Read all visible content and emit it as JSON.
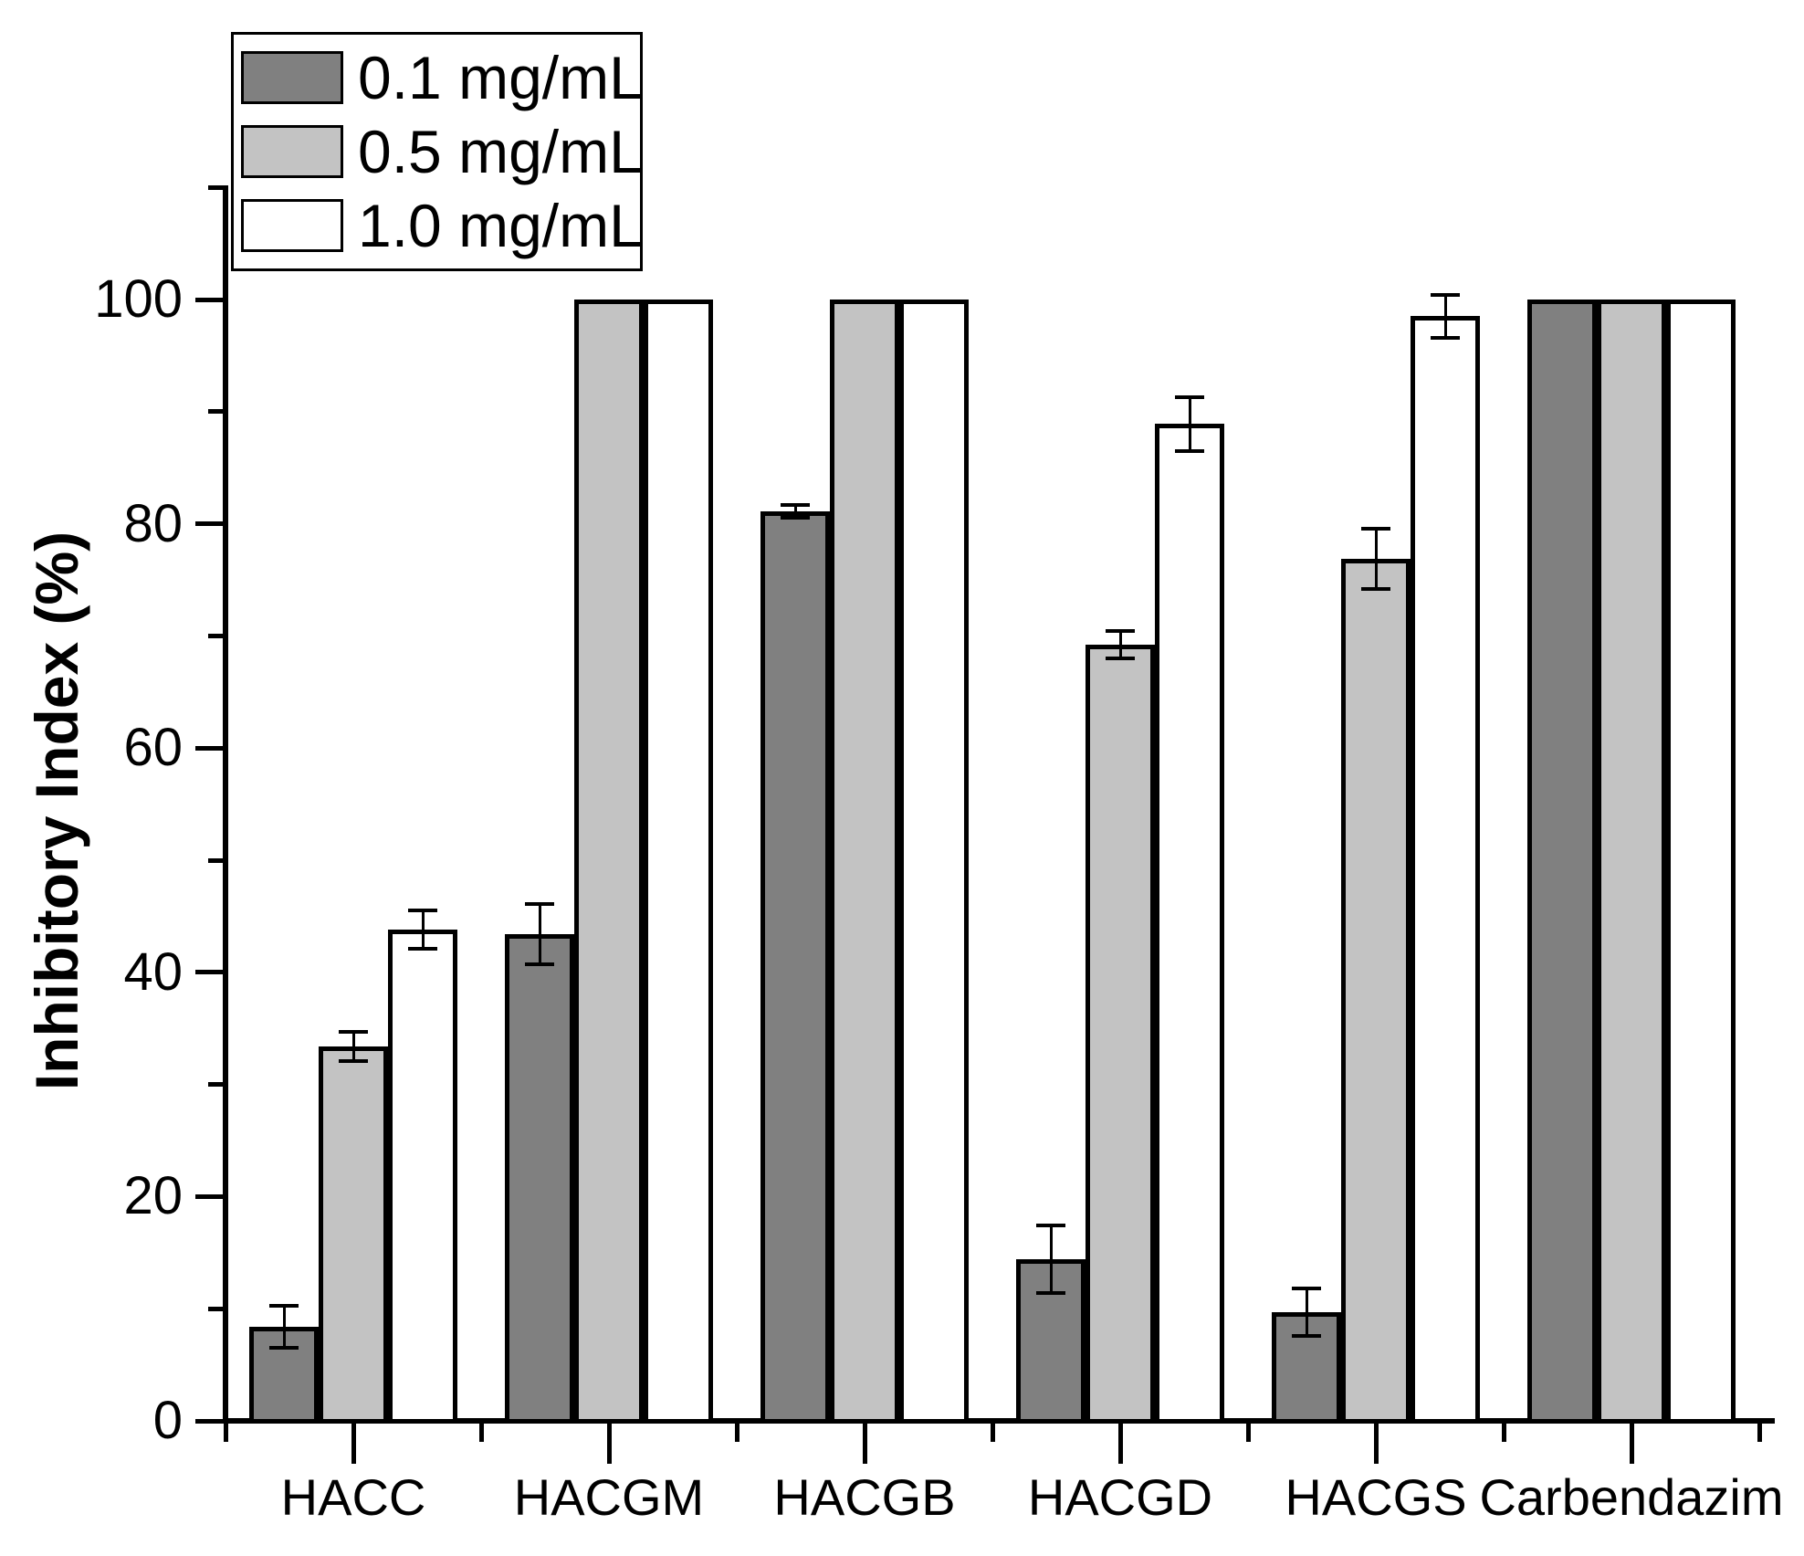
{
  "chart_data": {
    "type": "bar",
    "title": "",
    "ylabel": "Inhibitory Index (%)",
    "xlabel": "",
    "ylim": [
      0,
      110
    ],
    "y_major_ticks": [
      0,
      20,
      40,
      60,
      80,
      100
    ],
    "y_minor_ticks": [
      10,
      30,
      50,
      70,
      90,
      110
    ],
    "grid": "off",
    "legend_position": "top-left",
    "categories": [
      "HACC",
      "HACGM",
      "HACGB",
      "HACGD",
      "HACGS",
      "Carbendazim"
    ],
    "series": [
      {
        "name": "0.1 mg/mL",
        "color": "#808080",
        "values": [
          8.4,
          43.4,
          81.1,
          14.4,
          9.7,
          100
        ],
        "errors": [
          1.9,
          2.7,
          0.6,
          3.0,
          2.1,
          0
        ]
      },
      {
        "name": "0.5 mg/mL",
        "color": "#c3c3c3",
        "values": [
          33.4,
          100,
          100,
          69.2,
          76.9,
          100
        ],
        "errors": [
          1.3,
          0,
          0,
          1.2,
          2.7,
          0
        ]
      },
      {
        "name": "1.0 mg/mL",
        "color": "#ffffff",
        "values": [
          43.8,
          100,
          100,
          88.9,
          98.5,
          100
        ],
        "errors": [
          1.7,
          0,
          0,
          2.4,
          1.9,
          0
        ]
      }
    ],
    "bar_outline_color": "#000000",
    "error_bar_color": "#000000"
  }
}
